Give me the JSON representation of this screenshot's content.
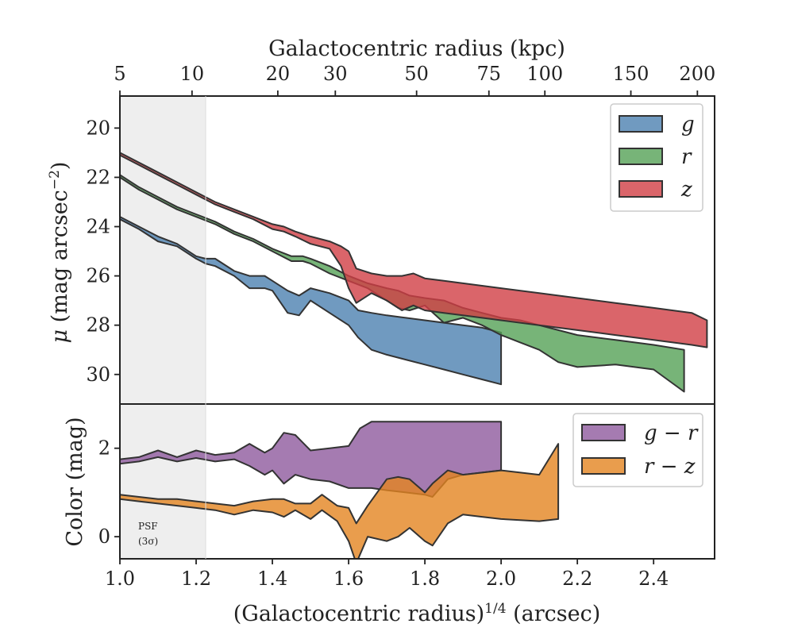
{
  "colors": {
    "g": "#4C81B0",
    "r": "#55A156",
    "z": "#D13E45",
    "g_r": "#8E5A9E",
    "r_z": "#E48521",
    "psf_shade": "#EEEEEE",
    "edge": "#333333"
  },
  "chart_data": [
    {
      "type": "area",
      "panel": "surface-brightness",
      "xlabel_top": "Galactocentric radius (kpc)",
      "ylabel": "μ (mag arcsec⁻²)",
      "xlim": [
        1.0,
        2.56
      ],
      "ylim": [
        31.2,
        18.7
      ],
      "y_inverted": true,
      "yticks": [
        "20",
        "22",
        "24",
        "26",
        "28",
        "30"
      ],
      "top_ticks_kpc": [
        "5",
        "10",
        "20",
        "30",
        "50",
        "75",
        "100",
        "150",
        "200"
      ],
      "legend": {
        "position": "top-right",
        "entries": [
          "g",
          "r",
          "z"
        ]
      },
      "psf_region": {
        "x_range": [
          1.0,
          1.225
        ],
        "label": [
          "PSF",
          "(3σ)"
        ]
      },
      "series": [
        {
          "name": "g",
          "x": [
            1.0,
            1.05,
            1.1,
            1.15,
            1.2,
            1.225,
            1.25,
            1.3,
            1.34,
            1.38,
            1.4,
            1.44,
            1.47,
            1.5,
            1.55,
            1.6,
            1.625,
            1.66,
            1.7,
            1.75,
            1.8,
            1.85,
            1.9,
            1.95,
            2.0
          ],
          "lower": [
            23.6,
            24.0,
            24.4,
            24.7,
            25.2,
            25.3,
            25.3,
            25.8,
            26.0,
            26.0,
            26.2,
            26.6,
            26.8,
            26.5,
            26.7,
            27.0,
            27.4,
            27.5,
            27.6,
            27.7,
            27.8,
            27.9,
            28.0,
            28.1,
            28.3
          ],
          "upper": [
            23.7,
            24.1,
            24.6,
            24.8,
            25.3,
            25.5,
            25.6,
            26.0,
            26.5,
            26.5,
            26.6,
            27.5,
            27.6,
            27.0,
            27.5,
            28.0,
            28.5,
            29.0,
            29.2,
            29.4,
            29.6,
            29.8,
            30.0,
            30.2,
            30.4
          ]
        },
        {
          "name": "r",
          "x": [
            1.0,
            1.05,
            1.1,
            1.15,
            1.2,
            1.25,
            1.3,
            1.35,
            1.4,
            1.45,
            1.48,
            1.5,
            1.55,
            1.6,
            1.65,
            1.7,
            1.73,
            1.76,
            1.8,
            1.85,
            1.9,
            1.95,
            2.0,
            2.05,
            2.1,
            2.15,
            2.2,
            2.3,
            2.4,
            2.48
          ],
          "lower": [
            21.9,
            22.4,
            22.8,
            23.2,
            23.5,
            23.8,
            24.2,
            24.5,
            24.9,
            25.2,
            25.2,
            25.3,
            25.6,
            26.0,
            26.3,
            26.5,
            26.6,
            26.8,
            26.9,
            27.0,
            27.3,
            27.5,
            27.7,
            27.8,
            28.0,
            28.2,
            28.4,
            28.6,
            28.8,
            29.0
          ],
          "upper": [
            22.0,
            22.5,
            22.9,
            23.3,
            23.6,
            23.9,
            24.3,
            24.6,
            25.0,
            25.4,
            25.4,
            25.5,
            25.9,
            26.2,
            26.5,
            27.0,
            27.3,
            27.4,
            27.2,
            27.9,
            27.7,
            28.0,
            28.4,
            28.7,
            29.0,
            29.5,
            29.7,
            29.6,
            29.8,
            30.7
          ]
        },
        {
          "name": "z",
          "x": [
            1.0,
            1.05,
            1.1,
            1.15,
            1.2,
            1.25,
            1.3,
            1.35,
            1.4,
            1.43,
            1.46,
            1.5,
            1.55,
            1.58,
            1.6,
            1.62,
            1.66,
            1.7,
            1.74,
            1.77,
            1.8,
            1.85,
            1.9,
            1.95,
            2.0,
            2.1,
            2.2,
            2.3,
            2.4,
            2.5,
            2.54
          ],
          "lower": [
            21.0,
            21.4,
            21.8,
            22.2,
            22.6,
            23.0,
            23.3,
            23.6,
            23.9,
            24.0,
            24.2,
            24.4,
            24.6,
            24.8,
            25.0,
            25.7,
            25.9,
            26.0,
            26.0,
            25.9,
            26.1,
            26.2,
            26.3,
            26.4,
            26.5,
            26.7,
            26.9,
            27.1,
            27.3,
            27.5,
            27.8
          ],
          "upper": [
            21.1,
            21.5,
            21.9,
            22.3,
            22.7,
            23.1,
            23.4,
            23.7,
            24.1,
            24.2,
            24.4,
            24.7,
            24.9,
            25.6,
            26.5,
            27.1,
            26.7,
            27.0,
            27.4,
            27.2,
            27.4,
            27.5,
            27.6,
            27.7,
            27.8,
            28.0,
            28.2,
            28.4,
            28.6,
            28.8,
            28.9
          ]
        }
      ]
    },
    {
      "type": "area",
      "panel": "color",
      "xlabel": "(Galactocentric radius)^1/4 (arcsec)",
      "ylabel": "Color (mag)",
      "xlim": [
        1.0,
        2.56
      ],
      "ylim": [
        -0.5,
        3.0
      ],
      "xticks": [
        "1.0",
        "1.2",
        "1.4",
        "1.6",
        "1.8",
        "2.0",
        "2.2",
        "2.4"
      ],
      "yticks": [
        "0",
        "2"
      ],
      "legend": {
        "position": "top-right",
        "entries": [
          "g − r",
          "r − z"
        ]
      },
      "series": [
        {
          "name": "g − r",
          "x": [
            1.0,
            1.05,
            1.1,
            1.15,
            1.2,
            1.25,
            1.3,
            1.34,
            1.38,
            1.4,
            1.43,
            1.46,
            1.5,
            1.55,
            1.6,
            1.63,
            1.66,
            1.7,
            1.75,
            1.8,
            1.82,
            1.86,
            1.9,
            1.95,
            2.0
          ],
          "lower": [
            1.65,
            1.7,
            1.8,
            1.7,
            1.78,
            1.7,
            1.75,
            1.6,
            1.4,
            1.5,
            1.2,
            1.4,
            1.3,
            1.25,
            1.1,
            1.1,
            1.1,
            1.05,
            1.0,
            0.95,
            0.9,
            1.3,
            1.4,
            1.45,
            1.5
          ],
          "upper": [
            1.75,
            1.8,
            1.95,
            1.8,
            1.95,
            1.85,
            1.9,
            2.1,
            1.9,
            2.0,
            2.35,
            2.3,
            1.95,
            2.0,
            2.05,
            2.45,
            2.6,
            2.6,
            2.6,
            2.6,
            2.6,
            2.6,
            2.6,
            2.6,
            2.6
          ]
        },
        {
          "name": "r − z",
          "x": [
            1.0,
            1.05,
            1.1,
            1.15,
            1.2,
            1.25,
            1.3,
            1.35,
            1.4,
            1.43,
            1.46,
            1.5,
            1.53,
            1.57,
            1.6,
            1.62,
            1.65,
            1.7,
            1.73,
            1.76,
            1.8,
            1.82,
            1.86,
            1.9,
            1.95,
            2.0,
            2.1,
            2.15
          ],
          "lower": [
            0.85,
            0.8,
            0.75,
            0.7,
            0.65,
            0.6,
            0.5,
            0.6,
            0.55,
            0.45,
            0.6,
            0.4,
            0.6,
            0.35,
            -0.1,
            -0.6,
            0.0,
            -0.1,
            0.0,
            0.2,
            -0.1,
            -0.2,
            0.3,
            0.5,
            0.45,
            0.4,
            0.35,
            0.4
          ],
          "upper": [
            0.95,
            0.9,
            0.85,
            0.85,
            0.8,
            0.75,
            0.7,
            0.8,
            0.85,
            0.85,
            0.75,
            0.75,
            0.95,
            0.7,
            0.65,
            0.3,
            0.7,
            1.3,
            1.35,
            1.3,
            1.0,
            1.2,
            1.5,
            1.4,
            1.45,
            1.5,
            1.4,
            2.1
          ]
        }
      ]
    }
  ]
}
